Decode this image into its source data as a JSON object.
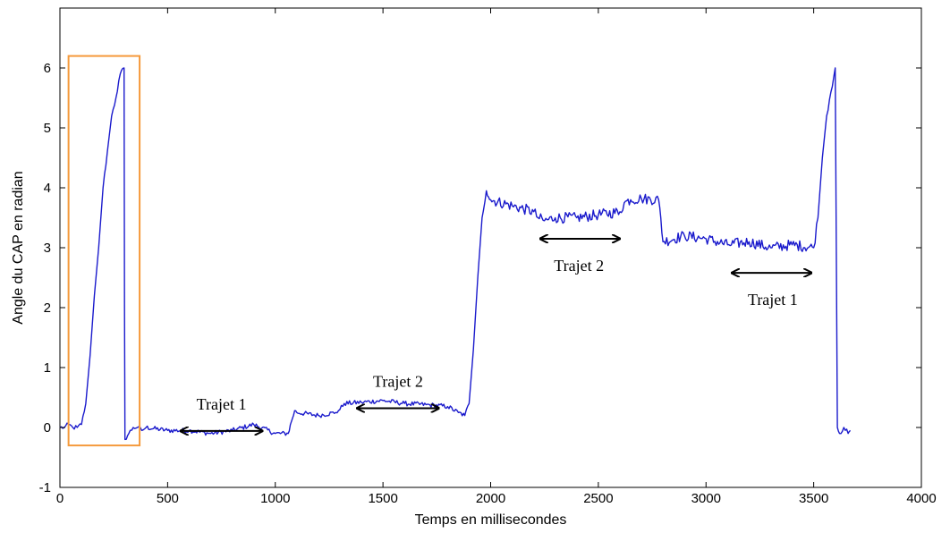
{
  "chart_data": {
    "type": "line",
    "title": "",
    "xlabel": "Temps en millisecondes",
    "ylabel": "Angle du CAP en radian",
    "xlim": [
      0,
      4000
    ],
    "ylim": [
      -1,
      7
    ],
    "xticks": [
      0,
      500,
      1000,
      1500,
      2000,
      2500,
      3000,
      3500,
      4000
    ],
    "yticks": [
      -1,
      0,
      1,
      2,
      3,
      4,
      5,
      6
    ],
    "grid": false,
    "line_color": "#1a1acc",
    "series": [
      {
        "x": [
          0,
          20,
          40,
          60,
          80,
          100,
          120,
          140,
          160,
          180,
          200,
          220,
          240,
          260,
          280,
          298,
          300,
          302,
          320,
          340,
          360,
          380,
          400,
          500,
          600,
          700,
          800,
          900,
          1000,
          1060,
          1075,
          1090,
          1100,
          1200,
          1280,
          1300,
          1320,
          1400,
          1500,
          1600,
          1700,
          1800,
          1850,
          1880,
          1900,
          1920,
          1940,
          1960,
          1980,
          1990,
          2000,
          2100,
          2200,
          2220,
          2250,
          2300,
          2400,
          2500,
          2600,
          2620,
          2650,
          2700,
          2780,
          2790,
          2800,
          2900,
          3000,
          3100,
          3200,
          3300,
          3400,
          3500,
          3520,
          3540,
          3560,
          3580,
          3600,
          3605,
          3610,
          3620,
          3640,
          3660,
          3670
        ],
        "y": [
          0.0,
          0.0,
          0.05,
          0.0,
          0.0,
          0.05,
          0.4,
          1.2,
          2.2,
          3.0,
          4.0,
          4.6,
          5.2,
          5.5,
          5.9,
          6.0,
          2.0,
          -0.2,
          -0.1,
          0.0,
          0.0,
          -0.05,
          0.0,
          -0.05,
          -0.05,
          -0.1,
          -0.05,
          0.05,
          -0.1,
          -0.1,
          0.1,
          0.28,
          0.25,
          0.2,
          0.25,
          0.3,
          0.4,
          0.42,
          0.45,
          0.4,
          0.38,
          0.35,
          0.25,
          0.2,
          0.4,
          1.3,
          2.5,
          3.5,
          3.95,
          3.85,
          3.8,
          3.7,
          3.6,
          3.5,
          3.45,
          3.5,
          3.5,
          3.55,
          3.6,
          3.75,
          3.8,
          3.82,
          3.8,
          3.5,
          3.1,
          3.2,
          3.15,
          3.05,
          3.1,
          3.0,
          3.05,
          3.0,
          3.5,
          4.5,
          5.2,
          5.6,
          6.0,
          3.0,
          0.0,
          -0.1,
          0.0,
          -0.1,
          -0.05
        ]
      }
    ],
    "annotations": [
      {
        "text": "Trajet 1",
        "x": 750,
        "y": 0.3,
        "arrow_from": 560,
        "arrow_to": 940
      },
      {
        "text": "Trajet 2",
        "x": 1570,
        "y": 0.68,
        "arrow_from": 1380,
        "arrow_to": 1760
      },
      {
        "text": "Trajet 2",
        "x": 2410,
        "y": 3.15,
        "arrow_from": 2230,
        "arrow_to": 2600
      },
      {
        "text": "Trajet 1",
        "x": 3310,
        "y": 2.58,
        "arrow_from": 3120,
        "arrow_to": 3490
      }
    ],
    "highlight_box": {
      "x0": 40,
      "x1": 370,
      "y0": -0.3,
      "y1": 6.2,
      "color": "#f59a3c"
    }
  }
}
